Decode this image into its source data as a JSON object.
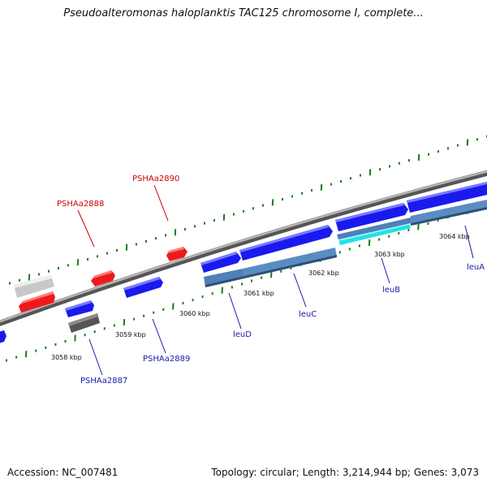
{
  "title": "Pseudoalteromonas haloplanktis TAC125 chromosome I, complete...",
  "footer": {
    "accession": "Accession: NC_007481",
    "summary": "Topology: circular; Length: 3,214,944 bp; Genes: 3,073"
  },
  "colors": {
    "backbone": "#7a7a7a",
    "forward_gene": "#1a1aee",
    "reverse_gene": "#ee1a1a",
    "cds": "#4f80b8",
    "highlight": "#22e0e8",
    "pseudo_light": "#c8c8c8",
    "pseudo_dark": "#555555",
    "ticks": "#1f7a1f",
    "label_forward": "#1a1aaa",
    "label_reverse": "#cc0000"
  },
  "kbp_labels": [
    "3058 kbp",
    "3059 kbp",
    "3060 kbp",
    "3061 kbp",
    "3062 kbp",
    "3063 kbp",
    "3064 kbp"
  ],
  "gene_labels": {
    "reverse": [
      "PSHAa2888",
      "PSHAa2890"
    ],
    "forward": [
      "PSHAa2887",
      "PSHAa2889",
      "leuD",
      "leuC",
      "leuB",
      "leuA"
    ]
  }
}
